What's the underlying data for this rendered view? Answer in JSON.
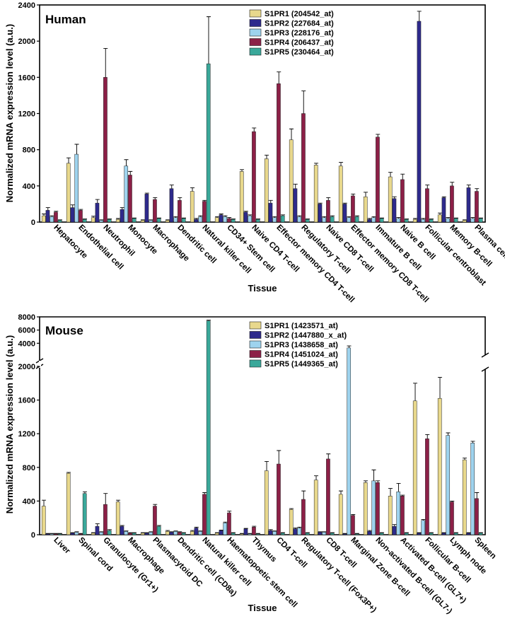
{
  "chart_data": [
    {
      "type": "bar",
      "title": "Human",
      "xlabel": "Tissue",
      "ylabel": "Normalized mRNA expression level (a.u.)",
      "ylim": [
        0,
        2400
      ],
      "yticks": [
        0,
        400,
        800,
        1200,
        1600,
        2000,
        2400
      ],
      "legend_position": "top-center",
      "categories": [
        "Hepatocyte",
        "Endothelial cell",
        "Neutrophil",
        "Monocyte",
        "Macrophage",
        "Dendritic cell",
        "Natural killer cell",
        "CD34+ Stem cell",
        "Naive CD4 T-cell",
        "Effector memory CD4 T-cell",
        "Regulatory T-cell",
        "Naive CD8 T-cell",
        "Effector memory CD8 T-cell",
        "Immature B cell",
        "Naive B cell",
        "Follicular centroblast",
        "Memory B-cell",
        "Plasma cell"
      ],
      "series": [
        {
          "name": "S1PR1 (204542_at)",
          "color": "#e8d88c",
          "values": [
            70,
            650,
            50,
            30,
            20,
            20,
            340,
            50,
            560,
            700,
            910,
            630,
            620,
            280,
            500,
            30,
            80,
            20
          ],
          "errors": [
            20,
            60,
            15,
            10,
            5,
            5,
            40,
            10,
            20,
            40,
            120,
            20,
            40,
            50,
            50,
            10,
            20,
            5
          ]
        },
        {
          "name": "S1PR2 (227684_at)",
          "color": "#2e2a8c",
          "values": [
            130,
            160,
            210,
            140,
            310,
            370,
            30,
            80,
            110,
            210,
            370,
            200,
            200,
            30,
            260,
            2220,
            270,
            380
          ],
          "errors": [
            30,
            30,
            40,
            20,
            10,
            40,
            10,
            10,
            10,
            30,
            50,
            10,
            10,
            10,
            20,
            110,
            10,
            30
          ]
        },
        {
          "name": "S1PR3 (228176_at)",
          "color": "#9ed3ee",
          "values": [
            60,
            750,
            20,
            620,
            20,
            50,
            60,
            60,
            70,
            50,
            60,
            50,
            50,
            50,
            40,
            30,
            40,
            40
          ],
          "errors": [
            10,
            110,
            5,
            70,
            5,
            10,
            10,
            10,
            10,
            10,
            10,
            10,
            10,
            10,
            10,
            10,
            10,
            10
          ]
        },
        {
          "name": "S1PR4 (206437_at)",
          "color": "#8c2047",
          "values": [
            110,
            130,
            1600,
            520,
            250,
            240,
            230,
            40,
            1000,
            1530,
            1200,
            240,
            290,
            940,
            470,
            370,
            400,
            340
          ],
          "errors": [
            10,
            10,
            320,
            40,
            20,
            30,
            10,
            10,
            40,
            130,
            250,
            30,
            20,
            30,
            60,
            40,
            40,
            30
          ]
        },
        {
          "name": "S1PR5 (230464_at)",
          "color": "#3aa89a",
          "values": [
            20,
            30,
            30,
            40,
            40,
            40,
            1750,
            30,
            30,
            70,
            30,
            60,
            60,
            40,
            30,
            30,
            40,
            40
          ],
          "errors": [
            5,
            5,
            5,
            5,
            5,
            5,
            520,
            5,
            5,
            10,
            5,
            10,
            10,
            5,
            5,
            5,
            5,
            5
          ]
        }
      ]
    },
    {
      "type": "bar",
      "title": "Mouse",
      "xlabel": "Tissue",
      "ylabel": "Normalized mRNA expression level (a.u.)",
      "ylim": [
        0,
        2000
      ],
      "yticks": [
        0,
        400,
        800,
        1200,
        1600,
        2000
      ],
      "upper_ylim": [
        3500,
        8000
      ],
      "upper_yticks": [
        4000,
        6000,
        8000
      ],
      "axis_break": true,
      "legend_position": "top-center",
      "categories": [
        "Liver",
        "Spinal cord",
        "Granulocyte (Gr1+)",
        "Macrophage",
        "Plasmacytoid DC",
        "Dendritic cell (CD8a)",
        "Natural killer cell",
        "Haematopoetic stem cell",
        "Thymus",
        "CD4 T-cell",
        "Regulatory T-cell (Fox3P+)",
        "CD8 T-cell",
        "Marginal Zone B-cell",
        "Non-activated B-cell (GL7-)",
        "Activated B-cell (GL7+)",
        "Follicular B-cell",
        "Lymph node",
        "Spleen"
      ],
      "series": [
        {
          "name": "S1PR1 (1423571_at)",
          "color": "#e8d88c",
          "values": [
            340,
            730,
            20,
            390,
            20,
            40,
            40,
            20,
            10,
            760,
            300,
            650,
            480,
            620,
            460,
            1590,
            1620,
            890
          ],
          "errors": [
            70,
            10,
            5,
            20,
            5,
            10,
            10,
            5,
            5,
            110,
            10,
            50,
            40,
            20,
            90,
            210,
            250,
            20
          ]
        },
        {
          "name": "S1PR2 (1447880_x_at)",
          "color": "#2e2a8c",
          "values": [
            10,
            20,
            100,
            100,
            20,
            30,
            80,
            50,
            70,
            50,
            70,
            30,
            10,
            40,
            100,
            20,
            20,
            20
          ],
          "errors": [
            5,
            5,
            30,
            10,
            5,
            5,
            10,
            5,
            5,
            10,
            10,
            5,
            5,
            10,
            20,
            5,
            5,
            5
          ]
        },
        {
          "name": "S1PR3 (1438658_at)",
          "color": "#9ed3ee",
          "values": [
            10,
            30,
            30,
            40,
            30,
            40,
            40,
            140,
            10,
            40,
            80,
            30,
            3300,
            640,
            510,
            170,
            1180,
            1090
          ],
          "errors": [
            5,
            5,
            5,
            5,
            5,
            5,
            5,
            10,
            5,
            5,
            10,
            5,
            300,
            130,
            100,
            10,
            30,
            20
          ]
        },
        {
          "name": "S1PR4 (1451024_at)",
          "color": "#8c2047",
          "values": [
            10,
            10,
            360,
            20,
            340,
            30,
            480,
            260,
            90,
            840,
            420,
            900,
            230,
            620,
            460,
            1140,
            390,
            430
          ],
          "errors": [
            5,
            5,
            130,
            5,
            20,
            5,
            20,
            20,
            10,
            160,
            100,
            60,
            10,
            20,
            10,
            50,
            10,
            70
          ]
        },
        {
          "name": "S1PR5 (1449365_at)",
          "color": "#3aa89a",
          "values": [
            10,
            490,
            50,
            20,
            100,
            20,
            7400,
            20,
            10,
            20,
            20,
            20,
            10,
            20,
            20,
            20,
            20,
            20
          ],
          "errors": [
            5,
            20,
            10,
            5,
            10,
            5,
            100,
            5,
            5,
            5,
            5,
            5,
            5,
            5,
            5,
            5,
            5,
            5
          ]
        }
      ]
    }
  ]
}
